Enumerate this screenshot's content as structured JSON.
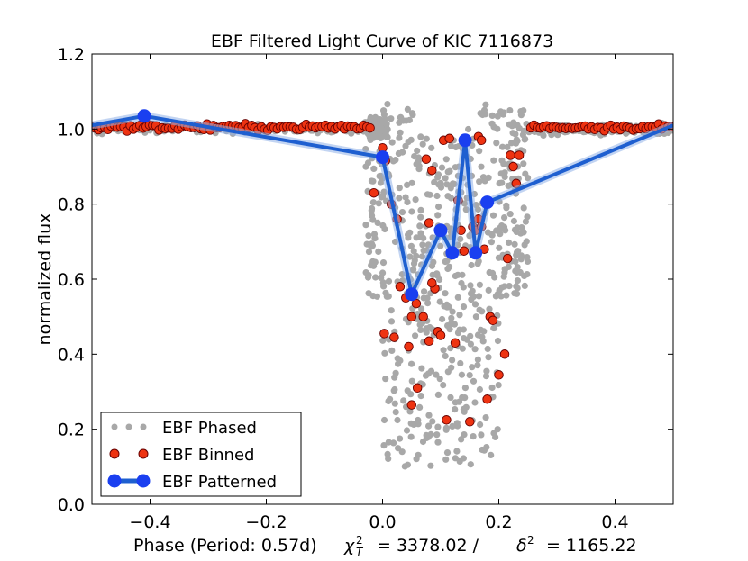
{
  "chart_data": {
    "type": "scatter",
    "title": "EBF Filtered Light Curve of KIC 7116873",
    "xlabel": "Phase (Period: 0.57d)",
    "xlabel_stats": {
      "chi_symbol": "χ",
      "chi_sub": "T",
      "chi_sup": "2",
      "chi_value": "= 3378.02 /",
      "delta_symbol": "δ",
      "delta_sup": "2",
      "delta_value": "= 1165.22"
    },
    "ylabel": "normalized flux",
    "xlim": [
      -0.5,
      0.5
    ],
    "ylim": [
      0.0,
      1.2
    ],
    "x_ticks": [
      -0.4,
      -0.2,
      0.0,
      0.2,
      0.4
    ],
    "x_tick_labels": [
      "−0.4",
      "−0.2",
      "0.0",
      "0.2",
      "0.4"
    ],
    "y_ticks": [
      0.0,
      0.2,
      0.4,
      0.6,
      0.8,
      1.0,
      1.2
    ],
    "y_tick_labels": [
      "0.0",
      "0.2",
      "0.4",
      "0.6",
      "0.8",
      "1.0",
      "1.2"
    ],
    "legend_position": "lower-left",
    "colors": {
      "phased": "#a8a8a8",
      "binned_fill": "#ee3311",
      "binned_edge": "#660000",
      "patterned": "#1e5fd0",
      "patterned_marker": "#1a3ff0"
    },
    "series": [
      {
        "name": "EBF Phased",
        "kind": "phased",
        "label": "EBF Phased",
        "note": "dense cloud of ~1000 phased observations: flat near 1.0 out of eclipse, scattering down to ~0.1 during eclipse (phase -0.02 to 0.25)"
      },
      {
        "name": "EBF Binned",
        "kind": "binned",
        "label": "EBF Binned",
        "points": [
          [
            0.0,
            0.95
          ],
          [
            0.005,
            0.915
          ],
          [
            -0.015,
            0.83
          ],
          [
            0.015,
            0.8
          ],
          [
            0.025,
            0.76
          ],
          [
            0.03,
            0.58
          ],
          [
            0.04,
            0.55
          ],
          [
            0.05,
            0.5
          ],
          [
            0.058,
            0.535
          ],
          [
            0.07,
            0.5
          ],
          [
            0.08,
            0.435
          ],
          [
            0.003,
            0.455
          ],
          [
            0.02,
            0.445
          ],
          [
            0.045,
            0.42
          ],
          [
            0.06,
            0.31
          ],
          [
            0.05,
            0.265
          ],
          [
            0.075,
            0.92
          ],
          [
            0.085,
            0.89
          ],
          [
            0.08,
            0.75
          ],
          [
            0.09,
            0.575
          ],
          [
            0.085,
            0.59
          ],
          [
            0.095,
            0.46
          ],
          [
            0.1,
            0.45
          ],
          [
            0.11,
            0.225
          ],
          [
            0.125,
            0.43
          ],
          [
            0.13,
            0.81
          ],
          [
            0.135,
            0.73
          ],
          [
            0.14,
            0.675
          ],
          [
            0.15,
            0.22
          ],
          [
            0.155,
            0.74
          ],
          [
            0.16,
            0.73
          ],
          [
            0.165,
            0.76
          ],
          [
            0.17,
            0.74
          ],
          [
            0.175,
            0.68
          ],
          [
            0.18,
            0.28
          ],
          [
            0.185,
            0.5
          ],
          [
            0.19,
            0.49
          ],
          [
            0.2,
            0.345
          ],
          [
            0.21,
            0.4
          ],
          [
            0.215,
            0.655
          ],
          [
            0.22,
            0.93
          ],
          [
            0.235,
            0.93
          ],
          [
            0.23,
            0.855
          ],
          [
            0.225,
            0.9
          ],
          [
            0.105,
            0.97
          ],
          [
            0.115,
            0.975
          ],
          [
            0.165,
            0.98
          ],
          [
            0.17,
            0.97
          ]
        ],
        "baseline_points": "out-of-eclipse binned points near 1.0 spanning phases -0.5 to -0.02 and 0.25 to 0.5"
      },
      {
        "name": "EBF Patterned",
        "kind": "patterned",
        "label": "EBF Patterned",
        "points": [
          [
            -0.5,
            1.01
          ],
          [
            -0.41,
            1.035
          ],
          [
            0.0,
            0.925
          ],
          [
            0.05,
            0.56
          ],
          [
            0.1,
            0.73
          ],
          [
            0.12,
            0.67
          ],
          [
            0.142,
            0.97
          ],
          [
            0.16,
            0.67
          ],
          [
            0.18,
            0.805
          ],
          [
            0.5,
            1.01
          ]
        ]
      }
    ]
  }
}
